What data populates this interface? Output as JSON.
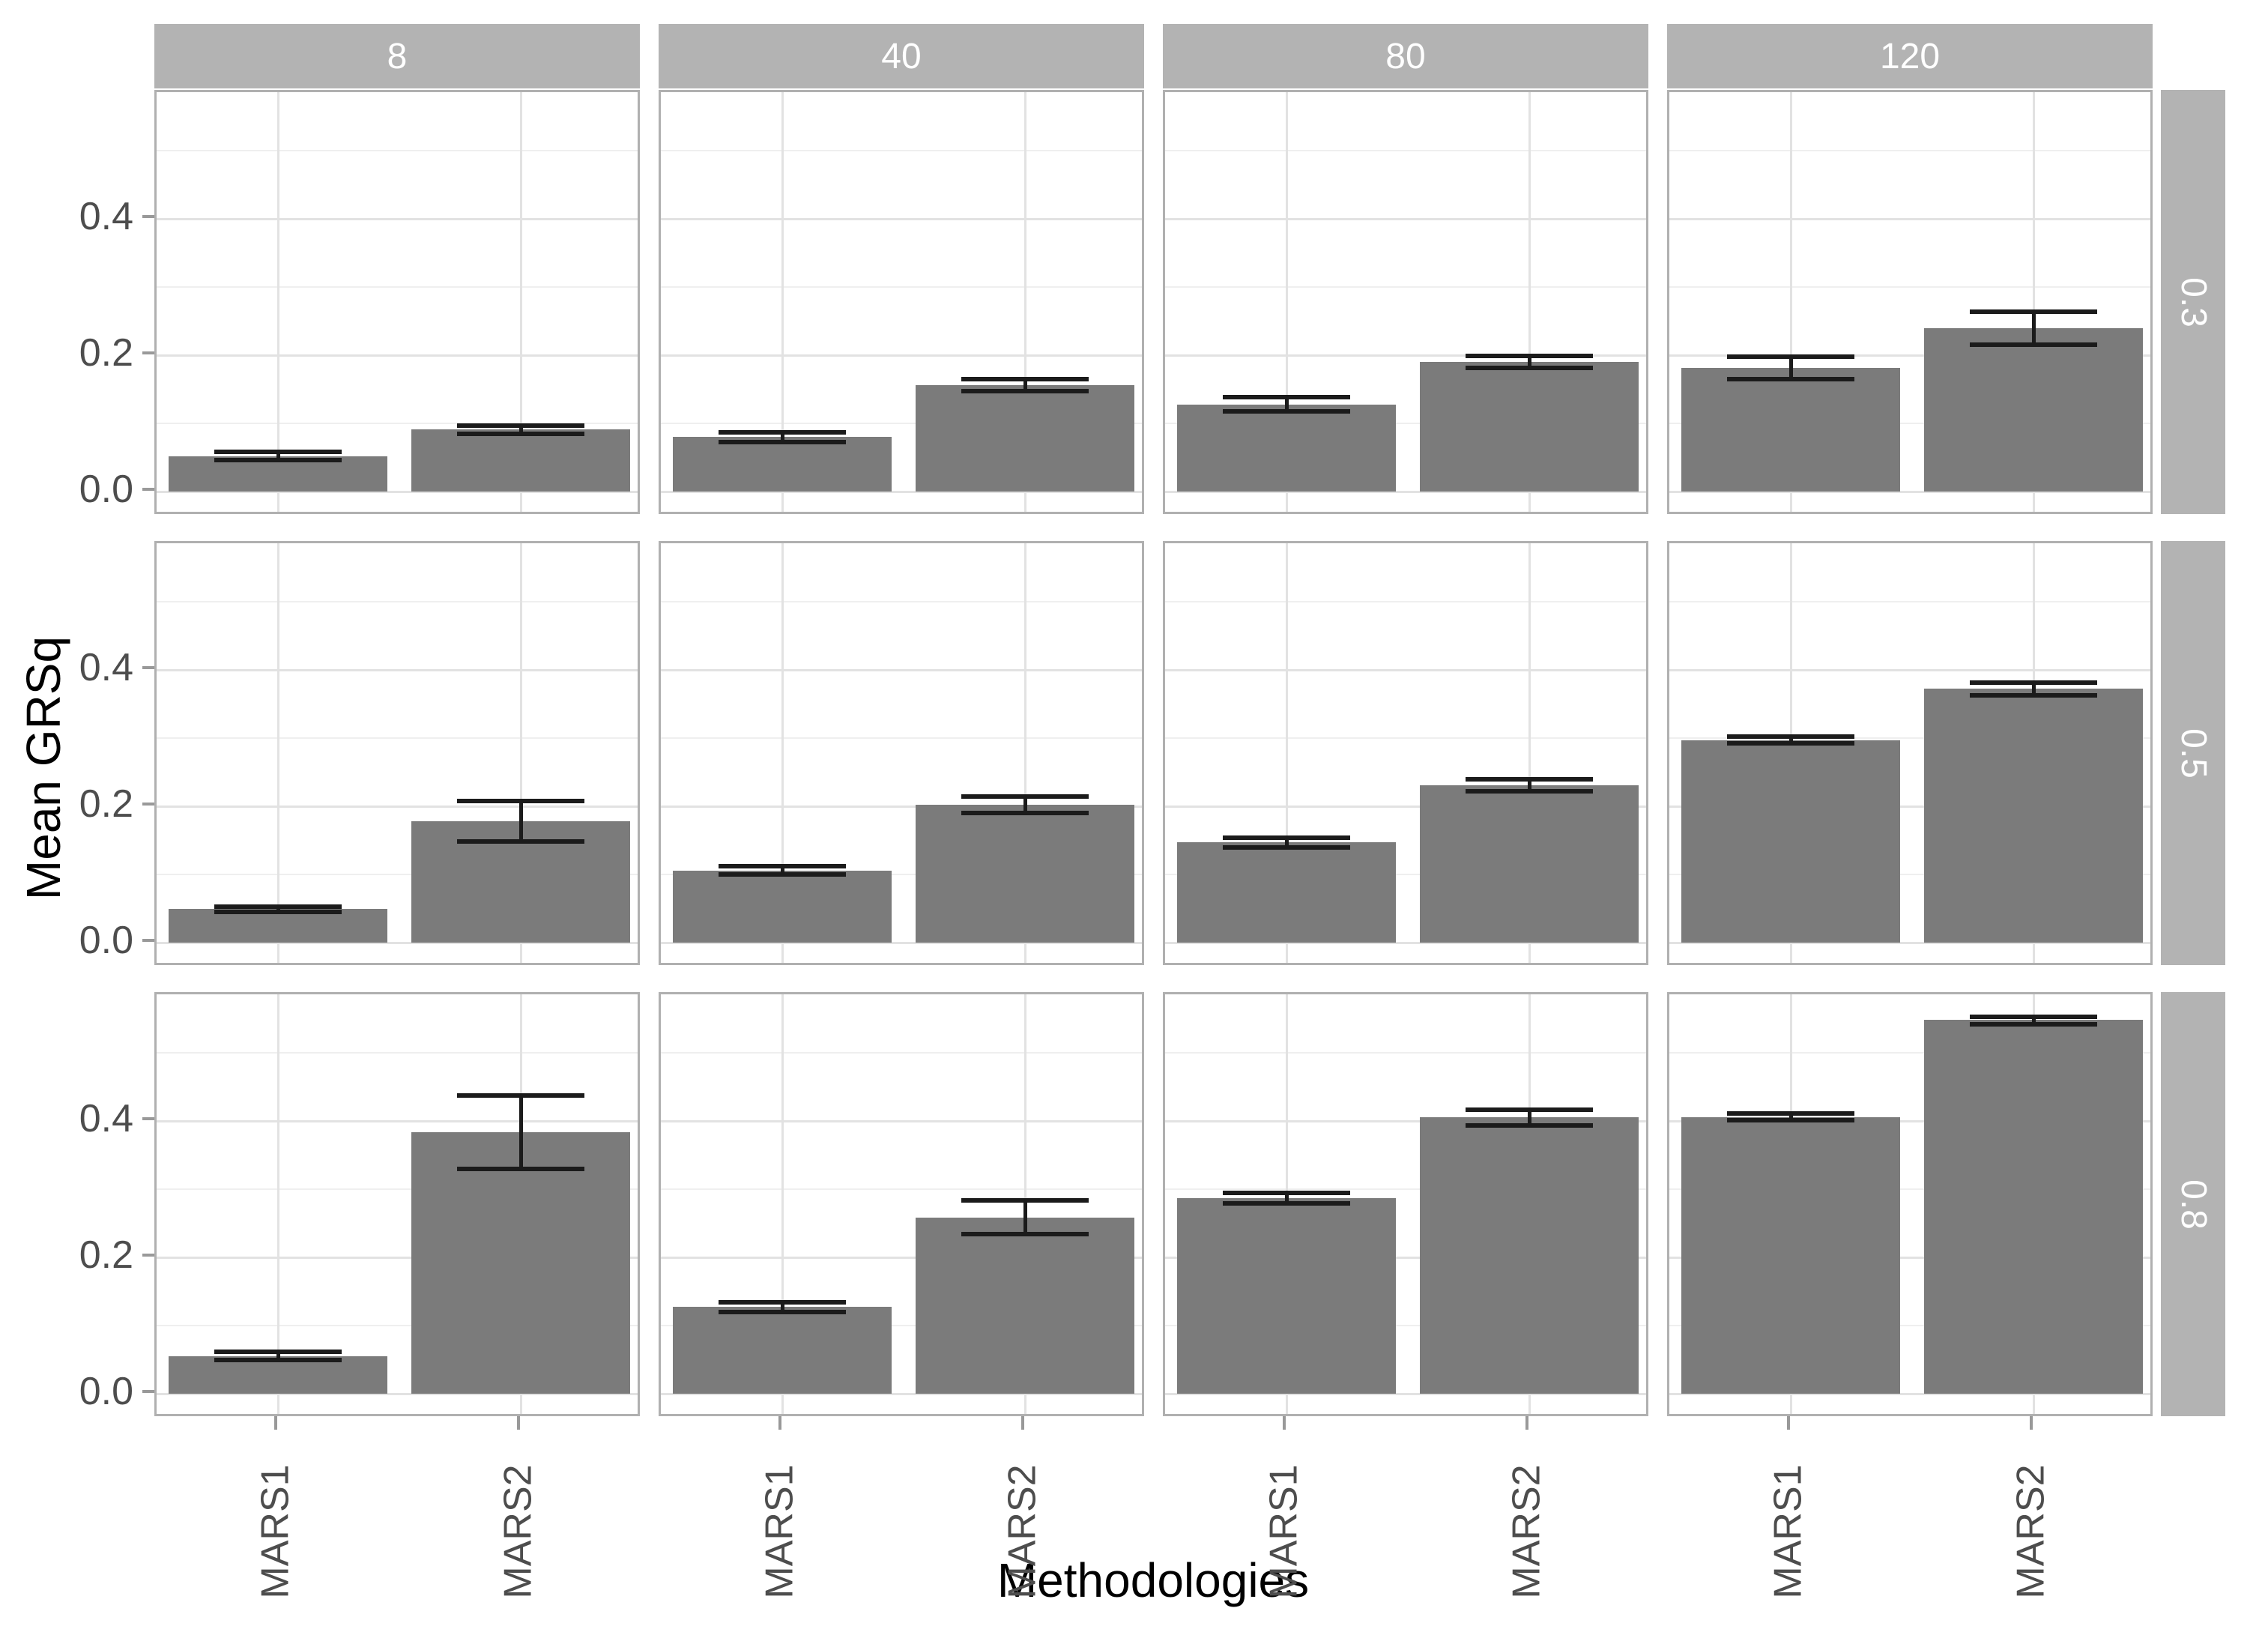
{
  "chart_data": {
    "type": "bar",
    "title": "",
    "xlabel": "Methodologies",
    "ylabel": "Mean GRSq",
    "categories": [
      "MARS1",
      "MARS2"
    ],
    "facet_col_labels": [
      "8",
      "40",
      "80",
      "120"
    ],
    "facet_row_labels": [
      "0.3",
      "0.5",
      "0.8"
    ],
    "y_axis": {
      "tick_values": [
        0,
        0.2,
        0.4
      ],
      "tick_labels": [
        "0.0",
        "0.2",
        "0.4"
      ],
      "minor_values": [
        0.1,
        0.3,
        0.5
      ],
      "ylim": [
        0,
        0.585
      ],
      "grid": true
    },
    "legend": "none",
    "panels": [
      {
        "row": "0.3",
        "col": "8",
        "values": [
          0.052,
          0.091
        ],
        "err_low": [
          0.046,
          0.085
        ],
        "err_high": [
          0.058,
          0.097
        ]
      },
      {
        "row": "0.3",
        "col": "40",
        "values": [
          0.08,
          0.156
        ],
        "err_low": [
          0.073,
          0.147
        ],
        "err_high": [
          0.087,
          0.165
        ]
      },
      {
        "row": "0.3",
        "col": "80",
        "values": [
          0.128,
          0.19
        ],
        "err_low": [
          0.118,
          0.181
        ],
        "err_high": [
          0.139,
          0.199
        ]
      },
      {
        "row": "0.3",
        "col": "120",
        "values": [
          0.181,
          0.24
        ],
        "err_low": [
          0.165,
          0.215
        ],
        "err_high": [
          0.198,
          0.264
        ]
      },
      {
        "row": "0.5",
        "col": "8",
        "values": [
          0.049,
          0.178
        ],
        "err_low": [
          0.045,
          0.148
        ],
        "err_high": [
          0.053,
          0.208
        ]
      },
      {
        "row": "0.5",
        "col": "40",
        "values": [
          0.106,
          0.202
        ],
        "err_low": [
          0.1,
          0.19
        ],
        "err_high": [
          0.112,
          0.214
        ]
      },
      {
        "row": "0.5",
        "col": "80",
        "values": [
          0.147,
          0.231
        ],
        "err_low": [
          0.14,
          0.222
        ],
        "err_high": [
          0.154,
          0.24
        ]
      },
      {
        "row": "0.5",
        "col": "120",
        "values": [
          0.297,
          0.372
        ],
        "err_low": [
          0.292,
          0.363
        ],
        "err_high": [
          0.302,
          0.381
        ]
      },
      {
        "row": "0.8",
        "col": "8",
        "values": [
          0.055,
          0.383
        ],
        "err_low": [
          0.049,
          0.33
        ],
        "err_high": [
          0.061,
          0.437
        ]
      },
      {
        "row": "0.8",
        "col": "40",
        "values": [
          0.127,
          0.258
        ],
        "err_low": [
          0.12,
          0.234
        ],
        "err_high": [
          0.134,
          0.283
        ]
      },
      {
        "row": "0.8",
        "col": "80",
        "values": [
          0.287,
          0.405
        ],
        "err_low": [
          0.279,
          0.393
        ],
        "err_high": [
          0.295,
          0.416
        ]
      },
      {
        "row": "0.8",
        "col": "120",
        "values": [
          0.406,
          0.548
        ],
        "err_low": [
          0.401,
          0.542
        ],
        "err_high": [
          0.411,
          0.553
        ]
      }
    ],
    "colors": {
      "bar": "#7b7b7b",
      "error_bar": "#1b1b1b",
      "strip_fill": "#b3b3b3",
      "strip_text": "#ffffff",
      "grid_major": "#e2e2e2",
      "grid_minor": "#efefef",
      "panel_border": "#b0b0b0",
      "tick_mark": "#999999",
      "tick_label": "#4d4d4d",
      "axis_title": "#000000",
      "background": "#ffffff"
    }
  }
}
